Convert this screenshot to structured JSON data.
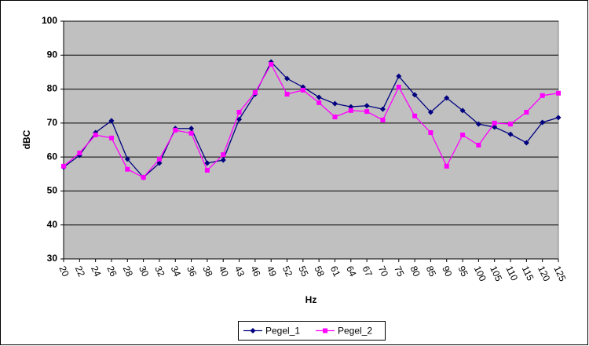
{
  "chart_data": {
    "type": "line",
    "x_label": "Hz",
    "y_label": "dBC",
    "categories": [
      "20",
      "22",
      "24",
      "26",
      "28",
      "30",
      "32",
      "34",
      "36",
      "38",
      "40",
      "43",
      "46",
      "49",
      "52",
      "55",
      "58",
      "61",
      "64",
      "67",
      "70",
      "75",
      "80",
      "85",
      "90",
      "95",
      "100",
      "105",
      "110",
      "115",
      "120",
      "125"
    ],
    "series": [
      {
        "name": "Pegel_1",
        "color": "#000080",
        "marker": "diamond",
        "values": [
          57.0,
          60.5,
          67.2,
          70.7,
          59.4,
          54.0,
          58.2,
          68.4,
          68.4,
          58.2,
          59.1,
          71.1,
          78.5,
          88.0,
          83.1,
          80.6,
          77.6,
          75.7,
          74.8,
          75.1,
          74.1,
          83.8,
          78.3,
          73.2,
          77.4,
          73.7,
          69.7,
          68.8,
          66.7,
          64.2,
          70.2,
          71.6
        ]
      },
      {
        "name": "Pegel_2",
        "color": "#ff00ff",
        "marker": "square",
        "values": [
          57.3,
          61.2,
          66.5,
          65.6,
          56.4,
          54.0,
          59.4,
          67.9,
          67.0,
          56.1,
          60.7,
          73.2,
          79.0,
          87.3,
          78.5,
          79.7,
          76.0,
          71.8,
          73.7,
          73.4,
          70.9,
          80.6,
          72.1,
          67.2,
          57.3,
          66.5,
          63.5,
          70.0,
          69.7,
          73.2,
          78.1,
          78.8
        ]
      }
    ],
    "ylim": [
      30,
      100
    ],
    "yticks": [
      30,
      40,
      50,
      60,
      70,
      80,
      90,
      100
    ],
    "grid": true,
    "legend": "bottom"
  }
}
